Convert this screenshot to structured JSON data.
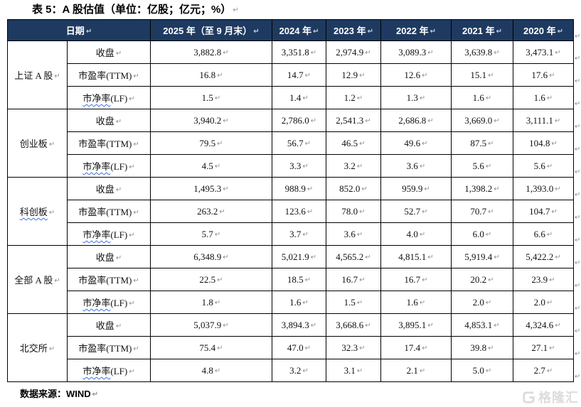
{
  "title": "表 5：A 股估值（单位：亿股；亿元；%）",
  "paragraph_mark": "↵",
  "header": {
    "date_label": "日期",
    "years": [
      "2025 年（至 9 月末）",
      "2024 年",
      "2023 年",
      "2022 年",
      "2021 年",
      "2020 年"
    ]
  },
  "groups": [
    {
      "name": "上证 A 股",
      "name_squiggle": false,
      "rows": [
        {
          "metric_parts": [
            {
              "text": "收盘",
              "squiggle": false
            }
          ],
          "values": [
            "3,882.8",
            "3,351.8",
            "2,974.9",
            "3,089.3",
            "3,639.8",
            "3,473.1"
          ]
        },
        {
          "metric_parts": [
            {
              "text": "市盈率(TTM)",
              "squiggle": false
            }
          ],
          "values": [
            "16.8",
            "14.7",
            "12.9",
            "12.6",
            "15.1",
            "17.6"
          ]
        },
        {
          "metric_parts": [
            {
              "text": "市净率",
              "squiggle": true
            },
            {
              "text": "(LF)",
              "squiggle": false
            }
          ],
          "values": [
            "1.5",
            "1.4",
            "1.2",
            "1.3",
            "1.6",
            "1.6"
          ]
        }
      ]
    },
    {
      "name": "创业板",
      "name_squiggle": false,
      "rows": [
        {
          "metric_parts": [
            {
              "text": "收盘",
              "squiggle": false
            }
          ],
          "values": [
            "3,940.2",
            "2,786.0",
            "2,541.3",
            "2,686.8",
            "3,669.0",
            "3,111.1"
          ]
        },
        {
          "metric_parts": [
            {
              "text": "市盈率(TTM)",
              "squiggle": false
            }
          ],
          "values": [
            "79.5",
            "56.7",
            "46.5",
            "49.6",
            "87.5",
            "104.8"
          ]
        },
        {
          "metric_parts": [
            {
              "text": "市净率",
              "squiggle": true
            },
            {
              "text": "(LF)",
              "squiggle": false
            }
          ],
          "values": [
            "4.5",
            "3.3",
            "3.2",
            "3.6",
            "5.6",
            "5.6"
          ]
        }
      ]
    },
    {
      "name": "科创板",
      "name_squiggle": true,
      "rows": [
        {
          "metric_parts": [
            {
              "text": "收盘",
              "squiggle": false
            }
          ],
          "values": [
            "1,495.3",
            "988.9",
            "852.0",
            "959.9",
            "1,398.2",
            "1,393.0"
          ]
        },
        {
          "metric_parts": [
            {
              "text": "市盈率(TTM)",
              "squiggle": false
            }
          ],
          "values": [
            "263.2",
            "123.6",
            "78.0",
            "52.7",
            "70.7",
            "104.7"
          ]
        },
        {
          "metric_parts": [
            {
              "text": "市净率",
              "squiggle": true
            },
            {
              "text": "(LF)",
              "squiggle": false
            }
          ],
          "values": [
            "5.7",
            "3.7",
            "3.6",
            "4.0",
            "6.0",
            "6.6"
          ]
        }
      ]
    },
    {
      "name": "全部 A 股",
      "name_squiggle": false,
      "rows": [
        {
          "metric_parts": [
            {
              "text": "收盘",
              "squiggle": false
            }
          ],
          "values": [
            "6,348.9",
            "5,021.9",
            "4,565.2",
            "4,815.1",
            "5,919.4",
            "5,422.2"
          ]
        },
        {
          "metric_parts": [
            {
              "text": "市盈率(TTM)",
              "squiggle": false
            }
          ],
          "values": [
            "22.5",
            "18.5",
            "16.7",
            "16.7",
            "20.2",
            "23.9"
          ]
        },
        {
          "metric_parts": [
            {
              "text": "市净率",
              "squiggle": true
            },
            {
              "text": "(LF)",
              "squiggle": false
            }
          ],
          "values": [
            "1.8",
            "1.6",
            "1.5",
            "1.6",
            "2.0",
            "2.0"
          ]
        }
      ]
    },
    {
      "name": "北交所",
      "name_squiggle": false,
      "rows": [
        {
          "metric_parts": [
            {
              "text": "收盘",
              "squiggle": false
            }
          ],
          "values": [
            "5,037.9",
            "3,894.3",
            "3,668.6",
            "3,895.1",
            "4,853.1",
            "4,324.6"
          ]
        },
        {
          "metric_parts": [
            {
              "text": "市盈率(TTM)",
              "squiggle": false
            }
          ],
          "values": [
            "75.4",
            "47.0",
            "32.3",
            "17.4",
            "39.8",
            "27.1"
          ]
        },
        {
          "metric_parts": [
            {
              "text": "市净率",
              "squiggle": true
            },
            {
              "text": "(LF)",
              "squiggle": false
            }
          ],
          "values": [
            "4.8",
            "3.2",
            "3.1",
            "2.1",
            "5.0",
            "2.7"
          ]
        }
      ]
    }
  ],
  "footer": {
    "source": "数据来源：WIND"
  },
  "watermark": {
    "text": "格隆汇",
    "icon": "gelonghui-logo"
  },
  "colors": {
    "header_bg": "#1f3a60",
    "header_text": "#ffffff",
    "border": "#000000",
    "mark_gray": "#8f8f8f",
    "squiggle_blue": "#3d6fe0",
    "watermark_gray": "#dcdcdc"
  }
}
